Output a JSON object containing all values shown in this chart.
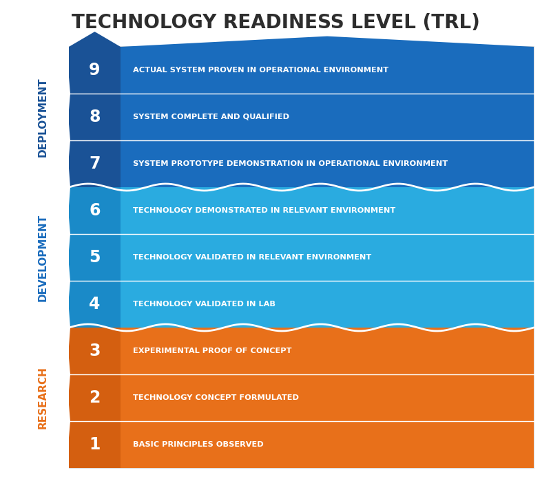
{
  "title": "TECHNOLOGY READINESS LEVEL (TRL)",
  "title_fontsize": 20,
  "title_color": "#2d2d2d",
  "background_color": "#ffffff",
  "levels": [
    {
      "num": 9,
      "text": "ACTUAL SYSTEM PROVEN IN OPERATIONAL ENVIRONMENT",
      "group": "deployment"
    },
    {
      "num": 8,
      "text": "SYSTEM COMPLETE AND QUALIFIED",
      "group": "deployment"
    },
    {
      "num": 7,
      "text": "SYSTEM PROTOTYPE DEMONSTRATION IN OPERATIONAL ENVIRONMENT",
      "group": "deployment"
    },
    {
      "num": 6,
      "text": "TECHNOLOGY DEMONSTRATED IN RELEVANT ENVIRONMENT",
      "group": "development"
    },
    {
      "num": 5,
      "text": "TECHNOLOGY VALIDATED IN RELEVANT ENVIRONMENT",
      "group": "development"
    },
    {
      "num": 4,
      "text": "TECHNOLOGY VALIDATED IN LAB",
      "group": "development"
    },
    {
      "num": 3,
      "text": "EXPERIMENTAL PROOF OF CONCEPT",
      "group": "research"
    },
    {
      "num": 2,
      "text": "TECHNOLOGY CONCEPT FORMULATED",
      "group": "research"
    },
    {
      "num": 1,
      "text": "BASIC PRINCIPLES OBSERVED",
      "group": "research"
    }
  ],
  "groups": {
    "deployment": {
      "label": "DEPLOYMENT",
      "color_num": "#1a5296",
      "color_bar": "#1a6cbd",
      "text_color": "#ffffff",
      "label_color": "#1a5296"
    },
    "development": {
      "label": "DEVELOPMENT",
      "color_num": "#1a8ac8",
      "color_bar": "#2aabe0",
      "text_color": "#ffffff",
      "label_color": "#1a6cbd"
    },
    "research": {
      "label": "RESEARCH",
      "color_num": "#d45f10",
      "color_bar": "#e8701a",
      "text_color": "#ffffff",
      "label_color": "#e8701a"
    }
  }
}
